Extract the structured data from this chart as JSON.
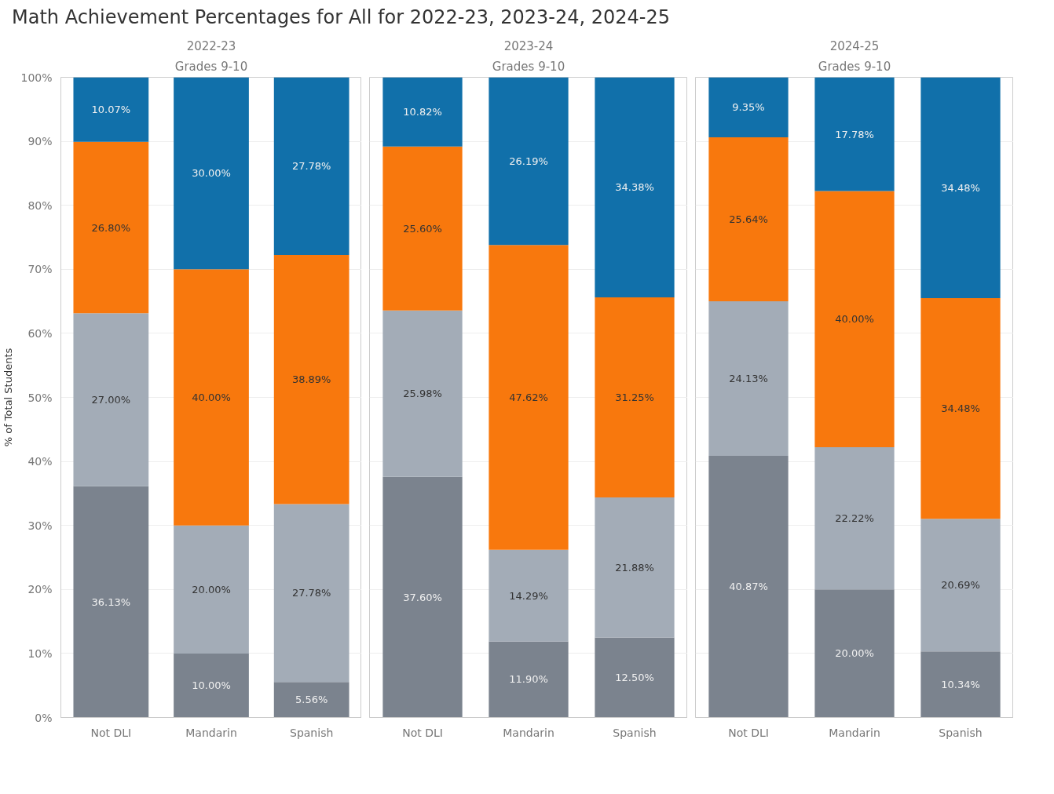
{
  "chart_data": [
    {
      "type": "bar",
      "title": "2022-23",
      "subtitle": "Grades 9-10",
      "ylabel": "% of Total Students",
      "annotations": [
        "Math Achievement Percentages for All for 2022-23, 2023-24, 2024-25"
      ],
      "categories": [
        "Not DLI",
        "Mandarin",
        "Spanish"
      ],
      "stacked": true,
      "grid": "y",
      "ylim": [
        0,
        100
      ],
      "yticks": [
        {
          "value": 0,
          "label": "0%"
        },
        {
          "value": 10,
          "label": "10%"
        },
        {
          "value": 20,
          "label": "20%"
        },
        {
          "value": 30,
          "label": "30%"
        },
        {
          "value": 40,
          "label": "40%"
        },
        {
          "value": 50,
          "label": "50%"
        },
        {
          "value": 60,
          "label": "60%"
        },
        {
          "value": 70,
          "label": "70%"
        },
        {
          "value": 80,
          "label": "80%"
        },
        {
          "value": 90,
          "label": "90%"
        },
        {
          "value": 100,
          "label": "100%"
        }
      ],
      "series": [
        {
          "color": "#7b838e",
          "values": [
            36.13,
            10.0,
            5.56
          ],
          "value_labels": [
            "36.13%",
            "10.00%",
            "5.56%"
          ]
        },
        {
          "color": "#a3acb7",
          "values": [
            27.0,
            20.0,
            27.78
          ],
          "value_labels": [
            "27.00%",
            "20.00%",
            "27.78%"
          ]
        },
        {
          "color": "#f8780d",
          "values": [
            26.8,
            40.0,
            38.89
          ],
          "value_labels": [
            "26.80%",
            "40.00%",
            "38.89%"
          ]
        },
        {
          "color": "#1170aa",
          "values": [
            10.07,
            30.0,
            27.78
          ],
          "value_labels": [
            "10.07%",
            "30.00%",
            "27.78%"
          ]
        }
      ]
    },
    {
      "type": "bar",
      "title": "2023-24",
      "subtitle": "Grades 9-10",
      "categories": [
        "Not DLI",
        "Mandarin",
        "Spanish"
      ],
      "stacked": true,
      "grid": "y",
      "tick_labels": "x",
      "ylim": [
        0,
        100
      ],
      "yticks": [
        {
          "value": 0,
          "label": null
        },
        {
          "value": 10,
          "label": null
        },
        {
          "value": 20,
          "label": null
        },
        {
          "value": 30,
          "label": null
        },
        {
          "value": 40,
          "label": null
        },
        {
          "value": 50,
          "label": null
        },
        {
          "value": 60,
          "label": null
        },
        {
          "value": 70,
          "label": null
        },
        {
          "value": 80,
          "label": null
        },
        {
          "value": 90,
          "label": null
        },
        {
          "value": 100,
          "label": null
        }
      ],
      "series": [
        {
          "color": "#7b838e",
          "values": [
            37.6,
            11.9,
            12.5
          ],
          "value_labels": [
            "37.60%",
            "11.90%",
            "12.50%"
          ]
        },
        {
          "color": "#a3acb7",
          "values": [
            25.98,
            14.29,
            21.88
          ],
          "value_labels": [
            "25.98%",
            "14.29%",
            "21.88%"
          ]
        },
        {
          "color": "#f8780d",
          "values": [
            25.6,
            47.62,
            31.25
          ],
          "value_labels": [
            "25.60%",
            "47.62%",
            "31.25%"
          ]
        },
        {
          "color": "#1170aa",
          "values": [
            10.82,
            26.19,
            34.38
          ],
          "value_labels": [
            "10.82%",
            "26.19%",
            "34.38%"
          ]
        }
      ]
    },
    {
      "type": "bar",
      "title": "2024-25",
      "subtitle": "Grades 9-10",
      "categories": [
        "Not DLI",
        "Mandarin",
        "Spanish"
      ],
      "stacked": true,
      "grid": "y",
      "tick_labels": "x",
      "ylim": [
        0,
        100
      ],
      "yticks": [
        {
          "value": 0,
          "label": null
        },
        {
          "value": 10,
          "label": null
        },
        {
          "value": 20,
          "label": null
        },
        {
          "value": 30,
          "label": null
        },
        {
          "value": 40,
          "label": null
        },
        {
          "value": 50,
          "label": null
        },
        {
          "value": 60,
          "label": null
        },
        {
          "value": 70,
          "label": null
        },
        {
          "value": 80,
          "label": null
        },
        {
          "value": 90,
          "label": null
        },
        {
          "value": 100,
          "label": null
        }
      ],
      "series": [
        {
          "color": "#7b838e",
          "values": [
            40.87,
            20.0,
            10.34
          ],
          "value_labels": [
            "40.87%",
            "20.00%",
            "10.34%"
          ]
        },
        {
          "color": "#a3acb7",
          "values": [
            24.13,
            22.22,
            20.69
          ],
          "value_labels": [
            "24.13%",
            "22.22%",
            "20.69%"
          ]
        },
        {
          "color": "#f8780d",
          "values": [
            25.64,
            40.0,
            34.48
          ],
          "value_labels": [
            "25.64%",
            "40.00%",
            "34.48%"
          ]
        },
        {
          "color": "#1170aa",
          "values": [
            9.35,
            17.78,
            34.48
          ],
          "value_labels": [
            "9.35%",
            "17.78%",
            "34.48%"
          ]
        }
      ]
    }
  ]
}
